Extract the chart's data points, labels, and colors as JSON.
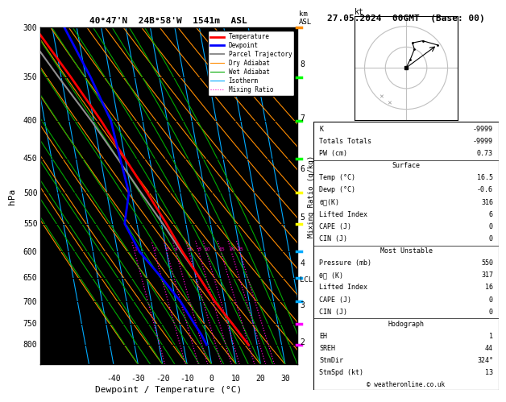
{
  "title_left": "40°47'N  24B°58'W  1541m  ASL",
  "title_right": "27.05.2024  00GMT  (Base: 00)",
  "xlabel": "Dewpoint / Temperature (°C)",
  "ylabel_left": "hPa",
  "temp_min": -45,
  "temp_max": 35,
  "temp_ticks": [
    -40,
    -30,
    -20,
    -10,
    0,
    10,
    20,
    30
  ],
  "pressure_levels": [
    300,
    350,
    400,
    450,
    500,
    550,
    600,
    650,
    700,
    750,
    800
  ],
  "skew_factor": 25.0,
  "isotherm_color": "#00aaff",
  "dry_adiabat_color": "#ff8c00",
  "wet_adiabat_color": "#00aa00",
  "mixing_ratio_color": "#ff00cc",
  "mixing_ratio_values": [
    1,
    2,
    3,
    4,
    6,
    8,
    10,
    15,
    20,
    25
  ],
  "temperature_profile": {
    "pressure": [
      800,
      775,
      750,
      700,
      650,
      600,
      550,
      500,
      450,
      400,
      350,
      300
    ],
    "temp": [
      16.5,
      14.0,
      11.5,
      6.0,
      1.5,
      -3.5,
      -8.0,
      -13.5,
      -20.0,
      -27.0,
      -36.0,
      -47.0
    ]
  },
  "dewpoint_profile": {
    "pressure": [
      800,
      775,
      750,
      700,
      650,
      600,
      550,
      500,
      450,
      400,
      350,
      300
    ],
    "dewp": [
      -0.6,
      -2.0,
      -4.0,
      -8.0,
      -14.0,
      -21.0,
      -25.0,
      -21.0,
      -22.0,
      -23.0,
      -28.0,
      -35.0
    ]
  },
  "parcel_profile": {
    "pressure": [
      800,
      775,
      750,
      700,
      650,
      600,
      550,
      500,
      450,
      400,
      350,
      300
    ],
    "temp": [
      16.5,
      14.0,
      11.5,
      6.0,
      1.5,
      -4.0,
      -9.5,
      -16.0,
      -23.0,
      -31.0,
      -41.0,
      -52.0
    ]
  },
  "km_ticks": [
    2,
    3,
    4,
    5,
    6,
    7,
    8
  ],
  "km_pressures": [
    793,
    707,
    621,
    540,
    465,
    397,
    336
  ],
  "lcl_pressure": 655,
  "legend_items": [
    {
      "label": "Temperature",
      "color": "#ff0000",
      "lw": 2.0,
      "ls": "-"
    },
    {
      "label": "Dewpoint",
      "color": "#0000ff",
      "lw": 2.0,
      "ls": "-"
    },
    {
      "label": "Parcel Trajectory",
      "color": "#909090",
      "lw": 1.5,
      "ls": "-"
    },
    {
      "label": "Dry Adiabat",
      "color": "#ff8c00",
      "lw": 0.8,
      "ls": "-"
    },
    {
      "label": "Wet Adiabat",
      "color": "#00aa00",
      "lw": 0.8,
      "ls": "-"
    },
    {
      "label": "Isotherm",
      "color": "#00aaff",
      "lw": 0.8,
      "ls": "-"
    },
    {
      "label": "Mixing Ratio",
      "color": "#ff00cc",
      "lw": 0.8,
      "ls": ":"
    }
  ],
  "info_K": "-9999",
  "info_TT": "-9999",
  "info_PW": "0.73",
  "surf_temp": "16.5",
  "surf_dewp": "-0.6",
  "surf_theta": "316",
  "surf_li": "6",
  "surf_cape": "0",
  "surf_cin": "0",
  "mu_pres": "550",
  "mu_theta": "317",
  "mu_li": "16",
  "mu_cape": "0",
  "mu_cin": "0",
  "hodo_eh": "1",
  "hodo_sreh": "44",
  "hodo_stmdir": "324°",
  "hodo_stmspd": "13",
  "wind_barb_pressures": [
    800,
    750,
    700,
    650,
    600,
    550,
    500,
    450,
    400,
    350,
    300
  ],
  "wind_barb_colors": [
    "#ff00ff",
    "#ff00ff",
    "#00aaff",
    "#00aaff",
    "#00aaff",
    "#ffff00",
    "#ffff00",
    "#00ff00",
    "#00ff00",
    "#00ff00",
    "#ff8c00"
  ]
}
